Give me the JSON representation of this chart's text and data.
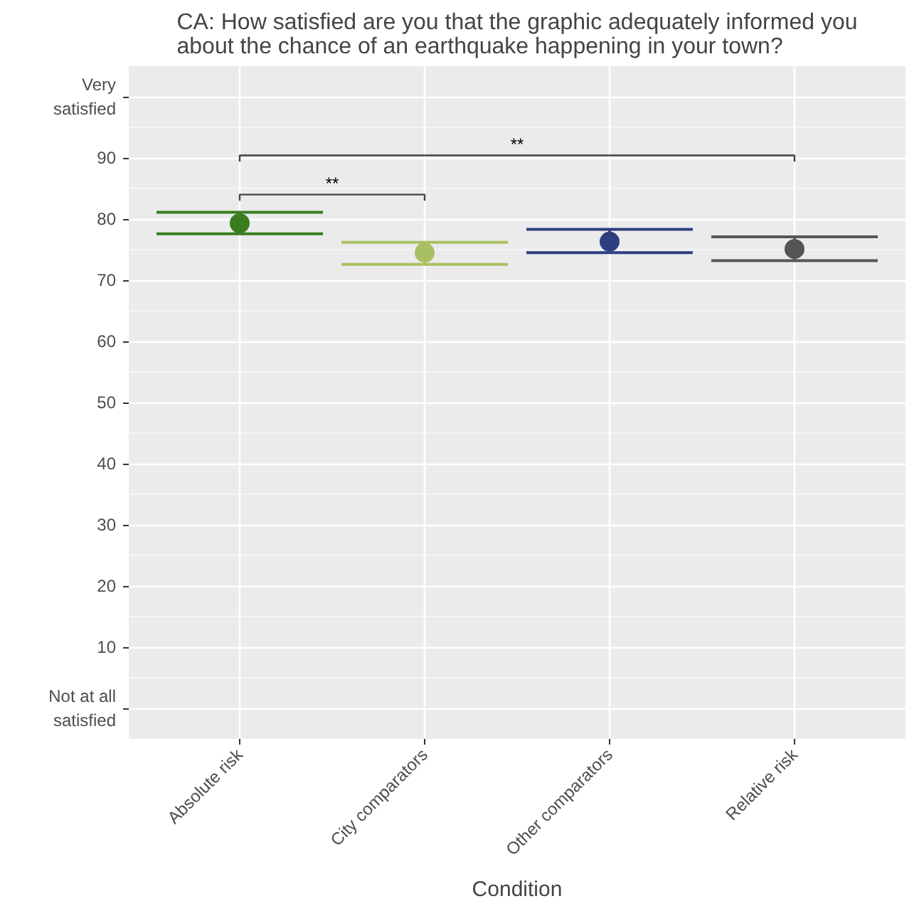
{
  "chart_data": {
    "type": "scatter",
    "title": "CA: How satisfied are you that the graphic adequately informed you about the chance of an earthquake happening in your town?",
    "xlabel": "Condition",
    "categories": [
      "Absolute risk",
      "City comparators",
      "Other comparators",
      "Relative risk"
    ],
    "series": [
      {
        "values": [
          79.3,
          74.5,
          76.3,
          75.1
        ],
        "colors": [
          "#3a7d1e",
          "#a8c063",
          "#2e3f80",
          "#555555"
        ],
        "errors": [
          [
            77.6,
            81.1
          ],
          [
            72.6,
            76.2
          ],
          [
            74.5,
            78.3
          ],
          [
            73.2,
            77.1
          ]
        ]
      }
    ],
    "ylim": [
      -5,
      105
    ],
    "yticks": [
      {
        "value": 0,
        "label": "Not at all\nsatisfied"
      },
      10,
      20,
      30,
      40,
      50,
      60,
      70,
      80,
      90,
      {
        "value": 100,
        "label": "Very\nsatisfied"
      }
    ],
    "annotations": [
      "**",
      "**"
    ],
    "grid": true,
    "marker": "circle"
  }
}
